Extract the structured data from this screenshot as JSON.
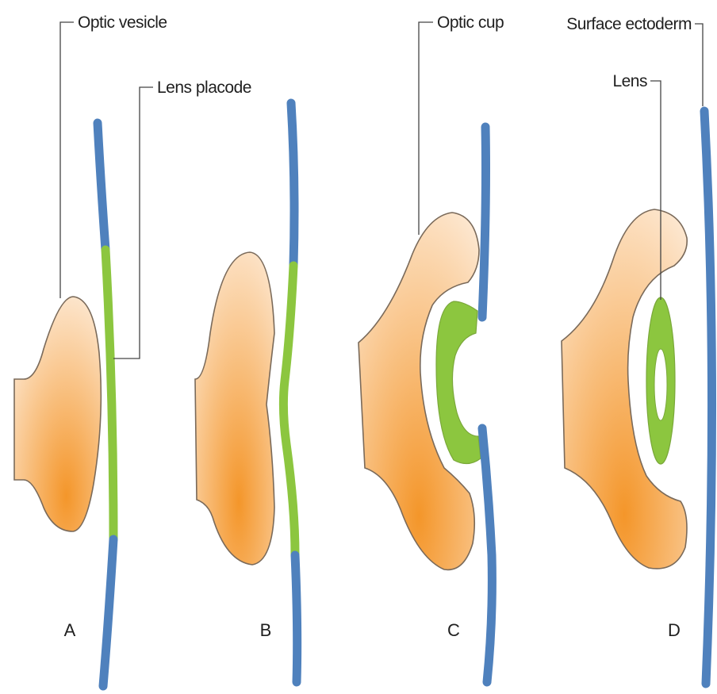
{
  "labels": {
    "optic_vesicle": "Optic vesicle",
    "lens_placode": "Lens placode",
    "optic_cup": "Optic cup",
    "surface_ectoderm": "Surface ectoderm",
    "lens": "Lens"
  },
  "panels": [
    "A",
    "B",
    "C",
    "D"
  ],
  "colors": {
    "surface_ectoderm": "#4f81bd",
    "lens_tissue": "#8cc63f",
    "optic_tissue_light": "#fde7cf",
    "optic_tissue_dark": "#f4962a",
    "outline": "#7a6a5a",
    "leader_line": "#444444"
  }
}
